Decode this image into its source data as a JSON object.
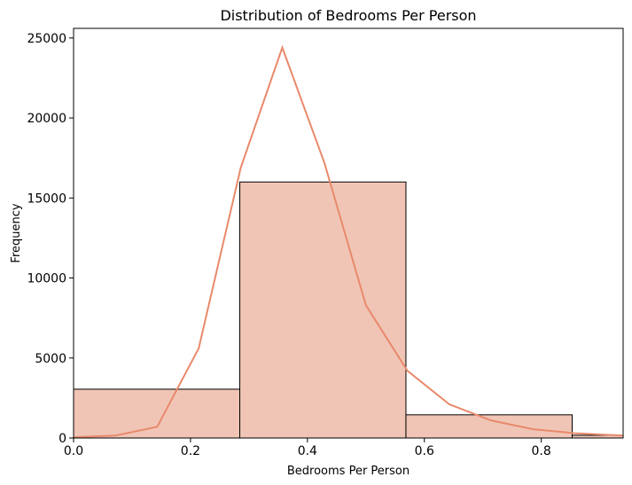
{
  "chart_data": {
    "type": "histogram",
    "title": "Distribution of Bedrooms Per Person",
    "xlabel": "Bedrooms Per Person",
    "ylabel": "Frequency",
    "xlim": [
      0,
      0.94
    ],
    "ylim": [
      0,
      25600
    ],
    "xticks": [
      0.0,
      0.2,
      0.4,
      0.6,
      0.8
    ],
    "xtick_labels": [
      "0.0",
      "0.2",
      "0.4",
      "0.6",
      "0.8"
    ],
    "yticks": [
      0,
      5000,
      10000,
      15000,
      20000,
      25000
    ],
    "ytick_labels": [
      "0",
      "5000",
      "10000",
      "15000",
      "20000",
      "25000"
    ],
    "bins": [
      {
        "x0": 0.0,
        "x1": 0.2843,
        "count": 3050
      },
      {
        "x0": 0.2843,
        "x1": 0.5685,
        "count": 16000
      },
      {
        "x0": 0.5685,
        "x1": 0.8528,
        "count": 1450
      },
      {
        "x0": 0.8528,
        "x1": 0.94,
        "count": 170
      }
    ],
    "kde": {
      "x": [
        0.0,
        0.071,
        0.143,
        0.214,
        0.286,
        0.357,
        0.429,
        0.5,
        0.571,
        0.643,
        0.714,
        0.786,
        0.857,
        0.94
      ],
      "y": [
        50,
        150,
        700,
        5600,
        16900,
        24400,
        17200,
        8300,
        4200,
        2100,
        1100,
        550,
        300,
        150
      ]
    },
    "bar_color": "#f0c5b6",
    "bar_edge_color": "#000000",
    "kde_color": "#e9896b"
  }
}
